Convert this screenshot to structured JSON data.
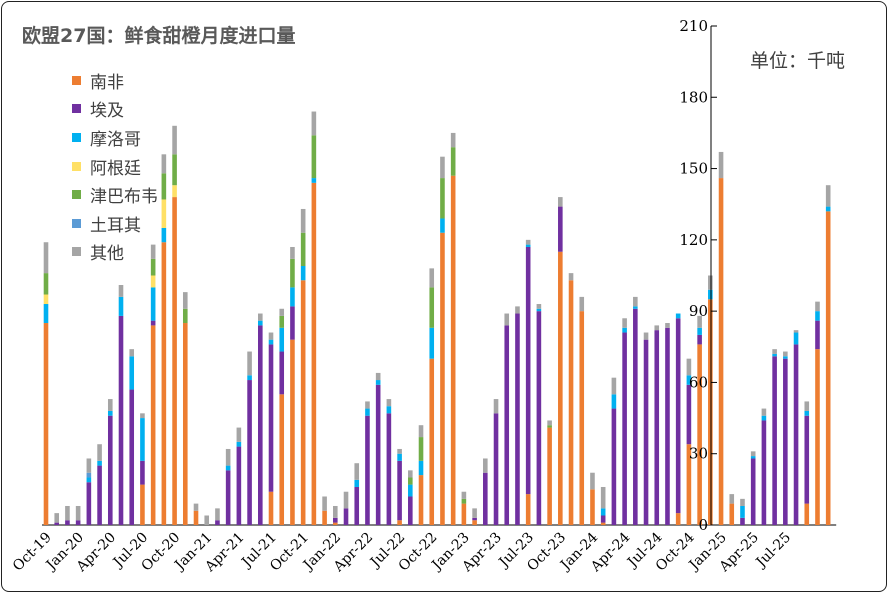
{
  "chart_data": {
    "type": "bar",
    "stacked": true,
    "title": "欧盟27国：鲜食甜橙月度进口量",
    "unit_label": "单位：千吨",
    "ylim": [
      0,
      210
    ],
    "yticks": [
      0,
      30,
      60,
      90,
      120,
      150,
      180,
      210
    ],
    "x_start": "2019-10",
    "x_tick_labels": [
      "Oct-19",
      "Jan-20",
      "Apr-20",
      "Jul-20",
      "Oct-20",
      "Jan-21",
      "Apr-21",
      "Jul-21",
      "Oct-21",
      "Jan-22",
      "Apr-22",
      "Jul-22",
      "Oct-22",
      "Jan-23",
      "Apr-23",
      "Jul-23",
      "Oct-23",
      "Jan-24",
      "Apr-24",
      "Jul-24",
      "Oct-24",
      "Jan-25",
      "Apr-25",
      "Jul-25"
    ],
    "x_tick_every": 3,
    "series": [
      {
        "name": "南非",
        "color": "#ED7D31",
        "values": [
          85,
          0,
          0,
          0,
          0,
          0,
          0,
          0,
          0,
          17,
          84,
          119,
          138,
          85,
          6,
          0,
          0,
          0,
          0,
          0,
          0,
          14,
          55,
          78,
          103,
          144,
          6,
          1,
          0,
          0,
          0,
          0,
          0,
          2,
          0,
          21,
          70,
          123,
          147,
          9,
          2,
          0,
          0,
          0,
          0,
          13,
          0,
          41,
          115,
          103,
          90,
          15,
          1,
          0,
          0,
          0,
          0,
          0,
          0,
          5,
          34,
          76,
          95,
          146,
          9,
          0,
          0,
          0,
          0,
          0,
          0,
          9,
          74,
          132
        ]
      },
      {
        "name": "埃及",
        "color": "#7030A0",
        "values": [
          0,
          1,
          2,
          2,
          18,
          25,
          46,
          88,
          57,
          10,
          2,
          0,
          0,
          0,
          0,
          0,
          2,
          23,
          33,
          61,
          84,
          62,
          18,
          14,
          0,
          0,
          0,
          2,
          7,
          16,
          46,
          59,
          47,
          25,
          12,
          0,
          0,
          0,
          0,
          0,
          1,
          22,
          47,
          84,
          89,
          104,
          90,
          0,
          19,
          0,
          0,
          0,
          3,
          49,
          81,
          91,
          78,
          82,
          83,
          82,
          25,
          4,
          0,
          0,
          0,
          3,
          28,
          44,
          71,
          70,
          76,
          37,
          12,
          0
        ]
      },
      {
        "name": "摩洛哥",
        "color": "#00B0F0",
        "values": [
          8,
          0,
          0,
          0,
          2,
          2,
          2,
          8,
          14,
          18,
          14,
          6,
          0,
          0,
          0,
          0,
          0,
          2,
          2,
          2,
          2,
          2,
          10,
          8,
          6,
          2,
          0,
          0,
          0,
          3,
          3,
          2,
          3,
          3,
          5,
          6,
          13,
          6,
          0,
          0,
          0,
          0,
          0,
          0,
          0,
          1,
          1,
          0,
          0,
          0,
          0,
          0,
          3,
          6,
          2,
          1,
          0,
          0,
          0,
          2,
          4,
          3,
          4,
          0,
          0,
          5,
          1,
          2,
          1,
          1,
          5,
          2,
          4,
          2
        ]
      },
      {
        "name": "阿根廷",
        "color": "#FFE066",
        "values": [
          4,
          0,
          0,
          0,
          0,
          0,
          0,
          0,
          0,
          0,
          5,
          12,
          5,
          0,
          0,
          0,
          0,
          0,
          0,
          0,
          0,
          0,
          0,
          0,
          0,
          0,
          0,
          0,
          0,
          0,
          0,
          0,
          0,
          0,
          0,
          0,
          0,
          0,
          0,
          0,
          0,
          0,
          0,
          0,
          0,
          0,
          0,
          0,
          0,
          0,
          0,
          0,
          0,
          0,
          0,
          0,
          0,
          0,
          0,
          0,
          0,
          0,
          0,
          0,
          0,
          0,
          0,
          0,
          0,
          0,
          0,
          0,
          0,
          0
        ]
      },
      {
        "name": "津巴布韦",
        "color": "#70AD47",
        "values": [
          9,
          0,
          0,
          0,
          0,
          0,
          0,
          0,
          0,
          0,
          7,
          11,
          13,
          6,
          0,
          0,
          0,
          0,
          0,
          0,
          0,
          0,
          5,
          12,
          14,
          18,
          0,
          0,
          0,
          0,
          0,
          0,
          0,
          0,
          3,
          10,
          17,
          17,
          12,
          2,
          0,
          0,
          0,
          0,
          0,
          0,
          0,
          1,
          0,
          0,
          0,
          0,
          0,
          0,
          0,
          0,
          0,
          0,
          0,
          0,
          0,
          0,
          0,
          0,
          0,
          0,
          0,
          0,
          0,
          0,
          0,
          0,
          0,
          0
        ]
      },
      {
        "name": "土耳其",
        "color": "#5B9BD5",
        "values": [
          0,
          0,
          0,
          0,
          2,
          0,
          0,
          0,
          0,
          0,
          0,
          0,
          0,
          0,
          0,
          0,
          0,
          0,
          0,
          0,
          0,
          0,
          0,
          0,
          0,
          0,
          0,
          0,
          0,
          0,
          0,
          0,
          0,
          0,
          0,
          0,
          0,
          0,
          0,
          0,
          0,
          0,
          0,
          0,
          0,
          0,
          0,
          0,
          0,
          0,
          0,
          0,
          0,
          0,
          0,
          0,
          0,
          0,
          0,
          0,
          0,
          0,
          0,
          0,
          0,
          0,
          0,
          0,
          0,
          0,
          0,
          0,
          0,
          0
        ]
      },
      {
        "name": "其他",
        "color": "#A5A5A5",
        "values": [
          13,
          4,
          6,
          6,
          6,
          7,
          5,
          5,
          3,
          2,
          6,
          8,
          12,
          7,
          3,
          4,
          5,
          7,
          6,
          10,
          3,
          3,
          3,
          5,
          10,
          10,
          6,
          5,
          7,
          7,
          3,
          3,
          3,
          2,
          3,
          5,
          8,
          9,
          6,
          3,
          4,
          6,
          6,
          5,
          3,
          2,
          2,
          2,
          4,
          3,
          6,
          7,
          9,
          7,
          4,
          4,
          3,
          2,
          2,
          0,
          7,
          5,
          6,
          11,
          4,
          3,
          2,
          3,
          2,
          2,
          1,
          4,
          4,
          9
        ]
      }
    ]
  }
}
